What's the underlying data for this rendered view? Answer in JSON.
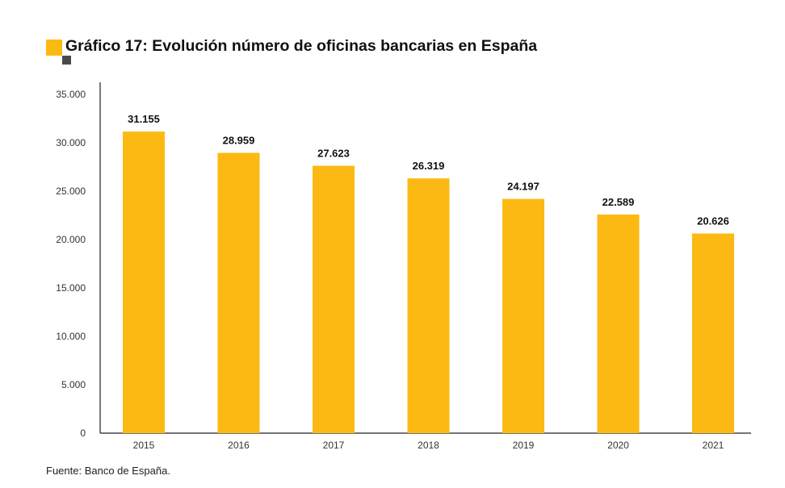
{
  "title": "Gráfico 17: Evolución número de oficinas bancarias en España",
  "footer": "Fuente: Banco de España.",
  "colors": {
    "bar": "#FDB913",
    "accent_square": "#FDB913",
    "accent_square_dark": "#4a4a4a",
    "axis": "#222222"
  },
  "chart_data": {
    "type": "bar",
    "categories": [
      "2015",
      "2016",
      "2017",
      "2018",
      "2019",
      "2020",
      "2021"
    ],
    "values": [
      31155,
      28959,
      27623,
      26319,
      24197,
      22589,
      20626
    ],
    "value_labels": [
      "31.155",
      "28.959",
      "27.623",
      "26.319",
      "24.197",
      "22.589",
      "20.626"
    ],
    "y_ticks": [
      0,
      5000,
      10000,
      15000,
      20000,
      25000,
      30000,
      35000
    ],
    "y_tick_labels": [
      "0",
      "5.000",
      "10.000",
      "15.000",
      "20.000",
      "25.000",
      "30.000",
      "35.000"
    ],
    "ylim": [
      0,
      35000
    ],
    "grid": false,
    "legend": "none"
  }
}
